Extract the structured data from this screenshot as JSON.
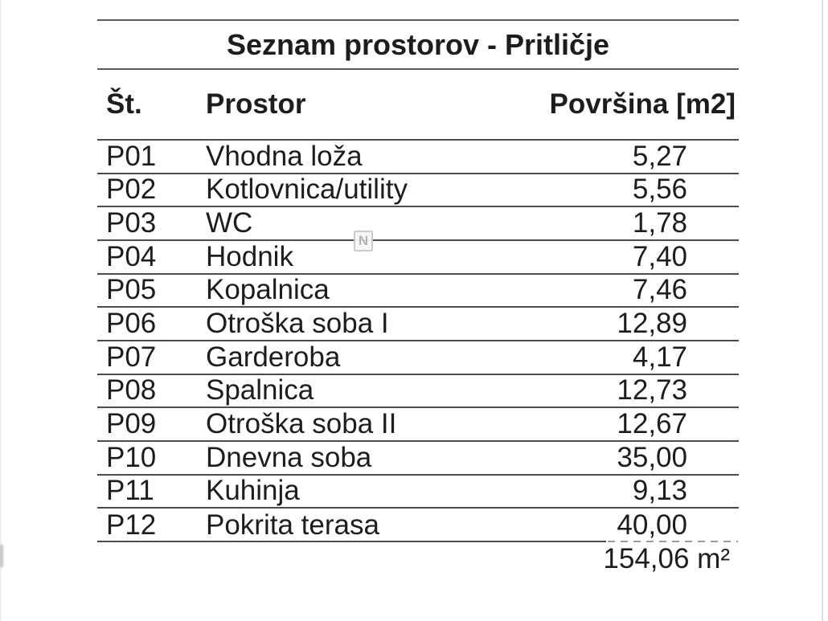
{
  "title": "Seznam prostorov - Pritličje",
  "table": {
    "headers": {
      "number": "Št.",
      "name": "Prostor",
      "area": "Površina [m2]"
    },
    "rows": [
      {
        "number": "P01",
        "name": "Vhodna loža",
        "area": "5,27"
      },
      {
        "number": "P02",
        "name": "Kotlovnica/utility",
        "area": "5,56"
      },
      {
        "number": "P03",
        "name": "WC",
        "area": "1,78"
      },
      {
        "number": "P04",
        "name": "Hodnik",
        "area": "7,40"
      },
      {
        "number": "P05",
        "name": "Kopalnica",
        "area": "7,46"
      },
      {
        "number": "P06",
        "name": "Otroška soba I",
        "area": "12,89"
      },
      {
        "number": "P07",
        "name": "Garderoba",
        "area": "4,17"
      },
      {
        "number": "P08",
        "name": "Spalnica",
        "area": "12,73"
      },
      {
        "number": "P09",
        "name": "Otroška soba II",
        "area": "12,67"
      },
      {
        "number": "P10",
        "name": "Dnevna soba",
        "area": "35,00"
      },
      {
        "number": "P11",
        "name": "Kuhinja",
        "area": "9,13"
      },
      {
        "number": "P12",
        "name": "Pokrita terasa",
        "area": "40,00"
      }
    ],
    "total_area": "154,06 m²"
  },
  "watermark": {
    "label": "N"
  },
  "colors": {
    "line_dark": "#4c4c4c",
    "line_title": "#5a5a5a",
    "dashed_line": "#9c9c9c",
    "text": "#1d1d1d",
    "watermark_gray": "#b0b0b0"
  },
  "chart_data": {
    "type": "table",
    "title": "Seznam prostorov - Pritličje",
    "columns": [
      "Št.",
      "Prostor",
      "Površina [m2]"
    ],
    "categories": [
      "Vhodna loža",
      "Kotlovnica/utility",
      "WC",
      "Hodnik",
      "Kopalnica",
      "Otroška soba I",
      "Garderoba",
      "Spalnica",
      "Otroška soba II",
      "Dnevna soba",
      "Kuhinja",
      "Pokrita terasa"
    ],
    "values": [
      5.27,
      5.56,
      1.78,
      7.4,
      7.46,
      12.89,
      4.17,
      12.73,
      12.67,
      35.0,
      9.13,
      40.0
    ],
    "total": 154.06
  }
}
